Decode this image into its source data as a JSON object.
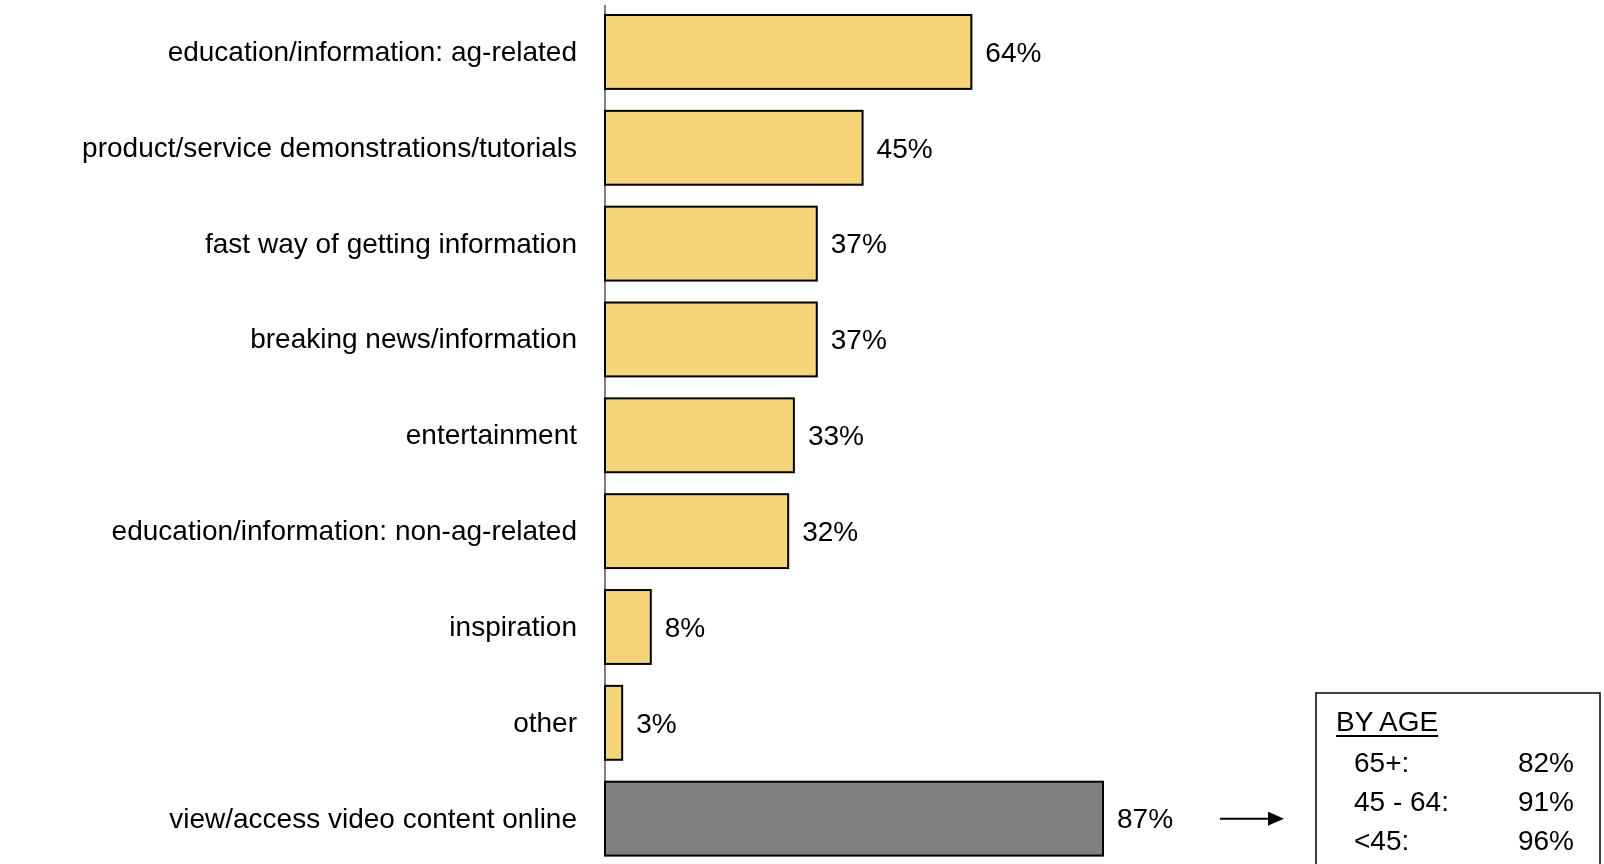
{
  "chart_data": {
    "type": "bar",
    "orientation": "horizontal",
    "categories": [
      "education/information: ag-related",
      "product/service demonstrations/tutorials",
      "fast way of getting information",
      "breaking news/information",
      "entertainment",
      "education/information: non-ag-related",
      "inspiration",
      "other",
      "view/access video content online"
    ],
    "values": [
      64,
      45,
      37,
      37,
      33,
      32,
      8,
      3,
      87
    ],
    "value_labels": [
      "64%",
      "45%",
      "37%",
      "37%",
      "33%",
      "32%",
      "8%",
      "3%",
      "87%"
    ],
    "colors": [
      "#f5d577",
      "#f5d577",
      "#f5d577",
      "#f5d577",
      "#f5d577",
      "#f5d577",
      "#f5d577",
      "#f5d577",
      "#808080"
    ],
    "annotations": [
      "BY AGE",
      "65+:",
      "82%",
      "45 - 64:",
      "91%",
      "<45:",
      "96%"
    ]
  }
}
